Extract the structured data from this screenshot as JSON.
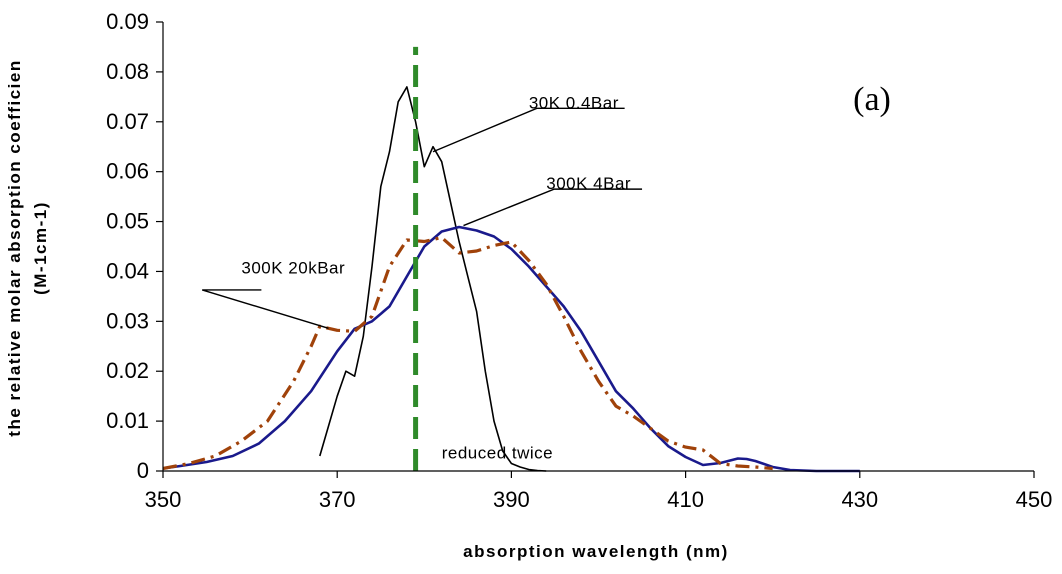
{
  "chart_data": {
    "type": "line",
    "title": "",
    "xlabel": "absorption wavelength (nm)",
    "ylabel_lines": [
      "the relative molar absorption coefficien",
      "(M-1cm-1)"
    ],
    "xlim": [
      350,
      450
    ],
    "ylim": [
      0,
      0.09
    ],
    "xticks": [
      "350",
      "370",
      "390",
      "410",
      "430",
      "450"
    ],
    "yticks": [
      "0",
      "0.01",
      "0.02",
      "0.03",
      "0.04",
      "0.05",
      "0.06",
      "0.07",
      "0.08",
      "0.09"
    ],
    "grid": false,
    "legend": "none",
    "panel_label": "(a)",
    "series": [
      {
        "label": "30K 0.4Bar",
        "color": "#000000",
        "style": "solid-thin",
        "x": [
          368,
          369,
          370,
          371,
          372,
          373,
          374,
          375,
          376,
          377,
          378,
          379,
          380,
          381,
          382,
          383,
          384,
          385,
          386,
          387,
          388,
          389,
          390,
          391,
          392,
          393,
          394
        ],
        "y": [
          0.003,
          0.009,
          0.015,
          0.02,
          0.019,
          0.027,
          0.041,
          0.057,
          0.064,
          0.074,
          0.077,
          0.07,
          0.061,
          0.065,
          0.062,
          0.054,
          0.046,
          0.039,
          0.032,
          0.02,
          0.01,
          0.004,
          0.0015,
          0.0008,
          0.0003,
          0.0001,
          0.0
        ]
      },
      {
        "label": "300K 4Bar",
        "color": "#1a1a8c",
        "style": "solid",
        "x": [
          350,
          352,
          355,
          358,
          361,
          364,
          367,
          370,
          372,
          374,
          376,
          378,
          380,
          382,
          384,
          386,
          388,
          390,
          392,
          394,
          396,
          398,
          400,
          402,
          404,
          406,
          408,
          410,
          412,
          414,
          416,
          417,
          418,
          420,
          422,
          425,
          430
        ],
        "y": [
          0.0005,
          0.001,
          0.0018,
          0.003,
          0.0055,
          0.01,
          0.016,
          0.024,
          0.0285,
          0.03,
          0.033,
          0.039,
          0.045,
          0.048,
          0.0489,
          0.0482,
          0.047,
          0.0445,
          0.041,
          0.037,
          0.033,
          0.028,
          0.022,
          0.016,
          0.0125,
          0.0085,
          0.005,
          0.0028,
          0.0012,
          0.0016,
          0.0025,
          0.0024,
          0.002,
          0.0008,
          0.0002,
          0.0,
          0.0
        ]
      },
      {
        "label": "300K 20kBar",
        "color": "#a0420a",
        "style": "dash-dot",
        "x": [
          350,
          353,
          356,
          359,
          362,
          365,
          367,
          368,
          370,
          372,
          374,
          376,
          378,
          380,
          382,
          384,
          386,
          388,
          390,
          392,
          394,
          396,
          398,
          400,
          402,
          404,
          406,
          408,
          410,
          412,
          414,
          416,
          418,
          420
        ],
        "y": [
          0.0005,
          0.0015,
          0.003,
          0.006,
          0.01,
          0.018,
          0.025,
          0.029,
          0.0282,
          0.028,
          0.031,
          0.041,
          0.0463,
          0.046,
          0.0468,
          0.0437,
          0.0441,
          0.0452,
          0.0459,
          0.0422,
          0.0375,
          0.031,
          0.024,
          0.018,
          0.013,
          0.011,
          0.0085,
          0.006,
          0.0048,
          0.0042,
          0.0015,
          0.001,
          0.0008,
          0.0005
        ]
      },
      {
        "label": "",
        "color": "#2f8a2a",
        "style": "dashed-vertical",
        "x": [
          379,
          379
        ],
        "y": [
          0.0,
          0.085
        ]
      }
    ],
    "annotations": [
      {
        "text": "30K 0.4Bar",
        "anchor": [
          381,
          0.064
        ],
        "label_pos": [
          392,
          0.0727
        ],
        "line_end": [
          403,
          0.0727
        ]
      },
      {
        "text": "300K 4Bar",
        "anchor": [
          384.5,
          0.0492
        ],
        "label_pos": [
          394,
          0.0565
        ],
        "line_end": [
          405,
          0.0565
        ]
      },
      {
        "text": "300K 20kBar",
        "anchor": [
          369,
          0.0286
        ],
        "label_pos": [
          359,
          0.0396
        ],
        "line_end": [
          354.5,
          0.0363
        ]
      },
      {
        "text": "reduced twice",
        "anchor": null,
        "label_pos": [
          382,
          0.0025
        ],
        "line_end": null
      }
    ]
  }
}
